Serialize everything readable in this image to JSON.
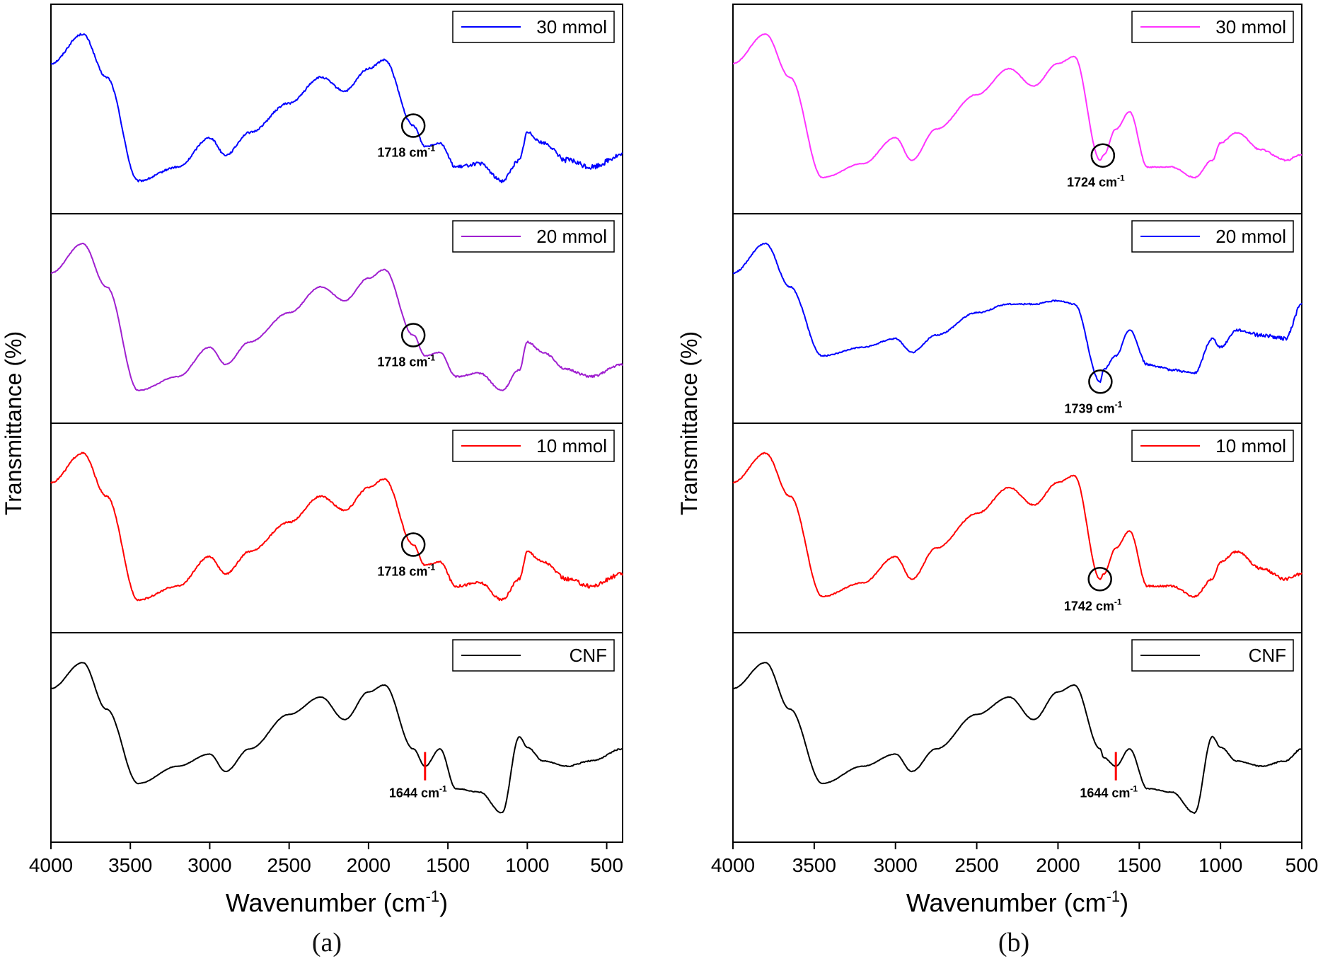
{
  "figure": {
    "panels": [
      {
        "label": "(a)",
        "ylabel": "Transmittance (%)",
        "xlabel_main": "Wavenumber (cm",
        "xlabel_sup": "-1",
        "xlabel_end": ")",
        "xlim": [
          4000,
          400
        ],
        "xticks": [
          4000,
          3500,
          3000,
          2500,
          2000,
          1500,
          1000,
          500
        ],
        "subplots": [
          {
            "legend": "30 mmol",
            "color": "#0000ff",
            "annotation": "1718 cm",
            "annotation_sup": "-1",
            "peak_wavenumber": 1718,
            "marker": "circle",
            "noise": 0.18
          },
          {
            "legend": "20 mmol",
            "color": "#a020d0",
            "annotation": "1718 cm",
            "annotation_sup": "-1",
            "peak_wavenumber": 1718,
            "marker": "circle",
            "noise": 0.08
          },
          {
            "legend": "10 mmol",
            "color": "#ff0000",
            "annotation": "1718 cm",
            "annotation_sup": "-1",
            "peak_wavenumber": 1718,
            "marker": "circle",
            "noise": 0.14
          },
          {
            "legend": "CNF",
            "color": "#000000",
            "annotation": "1644 cm",
            "annotation_sup": "-1",
            "peak_wavenumber": 1644,
            "marker": "line",
            "noise": 0.04
          }
        ]
      },
      {
        "label": "(b)",
        "ylabel": "Transmittance (%)",
        "xlabel_main": "Wavenumber (cm",
        "xlabel_sup": "-1",
        "xlabel_end": ")",
        "xlim": [
          4000,
          500
        ],
        "xticks": [
          4000,
          3500,
          3000,
          2500,
          2000,
          1500,
          1000,
          500
        ],
        "subplots": [
          {
            "legend": "30 mmol",
            "color": "#ff33ff",
            "annotation": "1724 cm",
            "annotation_sup": "-1",
            "peak_wavenumber": 1724,
            "marker": "circle",
            "noise": 0.06
          },
          {
            "legend": "20 mmol",
            "color": "#0000ff",
            "annotation": "1739 cm",
            "annotation_sup": "-1",
            "peak_wavenumber": 1739,
            "marker": "circle",
            "noise": 0.12
          },
          {
            "legend": "10 mmol",
            "color": "#ff0000",
            "annotation": "1742 cm",
            "annotation_sup": "-1",
            "peak_wavenumber": 1742,
            "marker": "circle",
            "noise": 0.1
          },
          {
            "legend": "CNF",
            "color": "#000000",
            "annotation": "1644 cm",
            "annotation_sup": "-1",
            "peak_wavenumber": 1644,
            "marker": "line",
            "noise": 0.04
          }
        ]
      }
    ]
  },
  "chart_data": [
    {
      "type": "line",
      "title": "(a)",
      "xlabel": "Wavenumber (cm-1)",
      "ylabel": "Transmittance (%)",
      "xlim": [
        4000,
        400
      ],
      "x": [
        4000,
        3800,
        3650,
        3450,
        3200,
        3000,
        2900,
        2750,
        2500,
        2300,
        2150,
        2000,
        1900,
        1718,
        1644,
        1550,
        1450,
        1300,
        1160,
        1050,
        1000,
        900,
        750,
        600,
        400
      ],
      "series": [
        {
          "name": "30 mmol",
          "values": [
            78,
            95,
            70,
            10,
            18,
            35,
            25,
            38,
            55,
            70,
            62,
            75,
            80,
            42,
            30,
            32,
            18,
            20,
            10,
            22,
            38,
            32,
            22,
            18,
            25
          ]
        },
        {
          "name": "20 mmol",
          "values": [
            78,
            95,
            70,
            10,
            18,
            35,
            25,
            38,
            55,
            70,
            62,
            75,
            80,
            42,
            30,
            32,
            18,
            20,
            10,
            22,
            38,
            32,
            22,
            18,
            25
          ]
        },
        {
          "name": "10 mmol",
          "values": [
            78,
            95,
            70,
            10,
            18,
            35,
            25,
            38,
            55,
            70,
            62,
            75,
            80,
            42,
            30,
            32,
            18,
            20,
            10,
            22,
            38,
            32,
            22,
            18,
            25
          ]
        },
        {
          "name": "CNF",
          "values": [
            80,
            95,
            68,
            25,
            35,
            42,
            32,
            45,
            65,
            75,
            62,
            78,
            82,
            45,
            35,
            45,
            22,
            20,
            8,
            52,
            46,
            38,
            35,
            38,
            45
          ]
        }
      ],
      "annotations": [
        "1718 cm-1",
        "1718 cm-1",
        "1718 cm-1",
        "1644 cm-1"
      ]
    },
    {
      "type": "line",
      "title": "(b)",
      "xlabel": "Wavenumber (cm-1)",
      "ylabel": "Transmittance (%)",
      "xlim": [
        4000,
        500
      ],
      "x": [
        4000,
        3800,
        3650,
        3450,
        3200,
        3000,
        2900,
        2750,
        2500,
        2300,
        2150,
        2000,
        1900,
        1740,
        1720,
        1644,
        1560,
        1450,
        1300,
        1160,
        1050,
        1000,
        900,
        750,
        600,
        500
      ],
      "series": [
        {
          "name": "30 mmol",
          "values": [
            78,
            95,
            70,
            12,
            20,
            35,
            22,
            40,
            60,
            75,
            65,
            78,
            82,
            22,
            25,
            40,
            50,
            18,
            18,
            12,
            22,
            32,
            38,
            28,
            22,
            25
          ]
        },
        {
          "name": "20 mmol",
          "values": [
            78,
            95,
            70,
            30,
            35,
            40,
            32,
            42,
            55,
            60,
            60,
            62,
            60,
            15,
            22,
            30,
            45,
            25,
            22,
            20,
            40,
            35,
            45,
            42,
            40,
            60
          ]
        },
        {
          "name": "10 mmol",
          "values": [
            78,
            95,
            70,
            12,
            20,
            35,
            22,
            40,
            60,
            75,
            65,
            78,
            82,
            22,
            25,
            40,
            50,
            18,
            18,
            12,
            22,
            32,
            38,
            28,
            22,
            25
          ]
        },
        {
          "name": "CNF",
          "values": [
            80,
            95,
            68,
            25,
            35,
            42,
            32,
            45,
            65,
            75,
            62,
            78,
            82,
            45,
            40,
            35,
            45,
            22,
            20,
            8,
            52,
            46,
            38,
            35,
            38,
            45
          ]
        }
      ],
      "annotations": [
        "1724 cm-1",
        "1739 cm-1",
        "1742 cm-1",
        "1644 cm-1"
      ]
    }
  ]
}
